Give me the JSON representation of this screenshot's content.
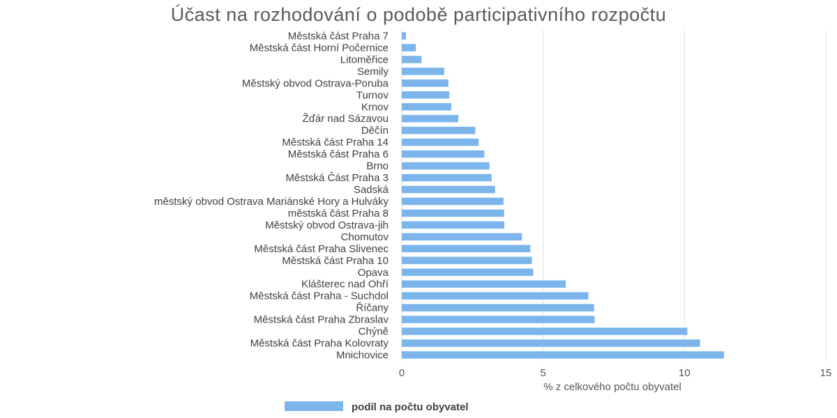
{
  "chart_data": {
    "type": "bar",
    "orientation": "horizontal",
    "title": "Účast na rozhodování o podobě participativního rozpočtu",
    "xlabel": "% z celkového počtu obyvatel",
    "ylabel": "",
    "xlim": [
      0,
      15
    ],
    "xticks": [
      0,
      5,
      10,
      15
    ],
    "grid": true,
    "legend_position": "bottom",
    "categories": [
      "Městská část Praha 7",
      "Městská část Horní Počernice",
      "Litoměřice",
      "Semily",
      "Městský obvod Ostrava-Poruba",
      "Turnov",
      "Krnov",
      "Žďár nad Sázavou",
      "Děčín",
      "Městská část Praha 14",
      "Městská část Praha 6",
      "Brno",
      "Městská Část Praha 3",
      "Sadská",
      "městský obvod Ostrava Mariánské Hory  a Hulváky",
      "městská část Praha 8",
      "Městský obvod Ostrava-jih",
      "Chomutov",
      "Městská část Praha Slivenec",
      "Městská část Praha 10",
      "Opava",
      "Klášterec nad Ohří",
      "Městská část Praha - Suchdol",
      "Říčany",
      "Městská část Praha Zbraslav",
      "Chýně",
      "Městská část Praha Kolovraty",
      "Mnichovice"
    ],
    "series": [
      {
        "name": "podíl na počtu obyvatel",
        "color": "#7cb5ec",
        "values": [
          0.15,
          0.5,
          0.7,
          1.5,
          1.65,
          1.68,
          1.75,
          2.0,
          2.6,
          2.72,
          2.92,
          3.1,
          3.18,
          3.3,
          3.6,
          3.62,
          3.63,
          4.25,
          4.55,
          4.6,
          4.65,
          5.8,
          6.6,
          6.8,
          6.82,
          10.1,
          10.55,
          11.4
        ]
      }
    ]
  }
}
